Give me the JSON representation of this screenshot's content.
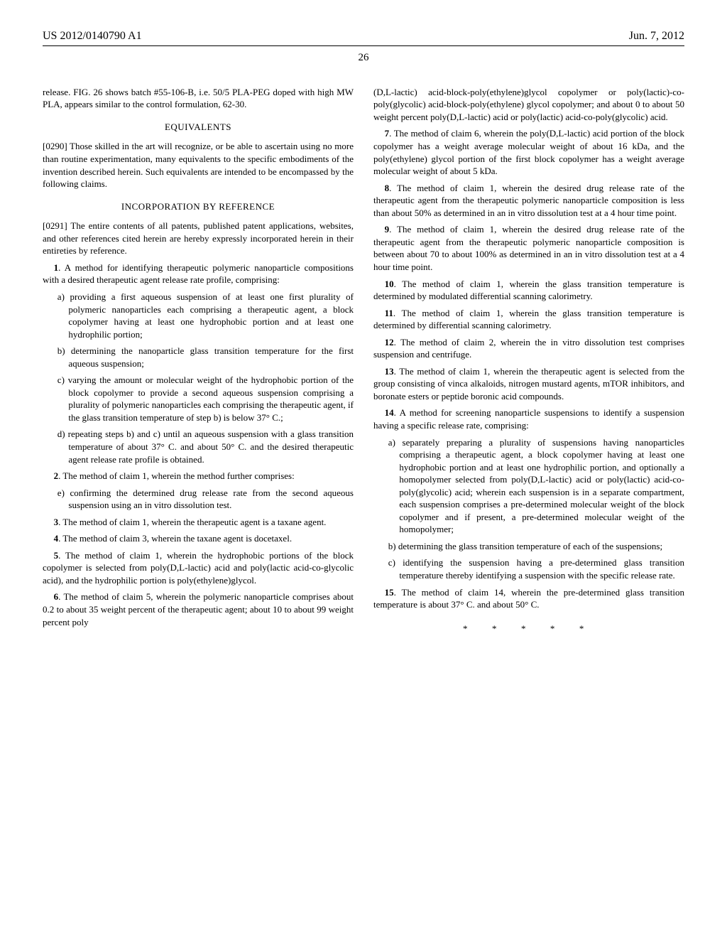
{
  "header": {
    "pub_number": "US 2012/0140790 A1",
    "pub_date": "Jun. 7, 2012"
  },
  "page_number": "26",
  "intro_para": "release. FIG. 26 shows batch #55-106-B, i.e. 50/5 PLA-PEG doped with high MW PLA, appears similar to the control formulation, 62-30.",
  "equivalents_title": "EQUIVALENTS",
  "equivalents_para": "[0290]   Those skilled in the art will recognize, or be able to ascertain using no more than routine experimentation, many equivalents to the specific embodiments of the invention described herein. Such equivalents are intended to be encompassed by the following claims.",
  "incorp_title": "INCORPORATION BY REFERENCE",
  "incorp_para": "[0291]   The entire contents of all patents, published patent applications, websites, and other references cited herein are hereby expressly incorporated herein in their entireties by reference.",
  "claims": {
    "c1_intro": "1. A method for identifying therapeutic polymeric nanoparticle compositions with a desired therapeutic agent release rate profile, comprising:",
    "c1a": "a) providing a first aqueous suspension of at least one first plurality of polymeric nanoparticles each comprising a therapeutic agent, a block copolymer having at least one hydrophobic portion and at least one hydrophilic portion;",
    "c1b": "b) determining the nanoparticle glass transition temperature for the first aqueous suspension;",
    "c1c": "c) varying the amount or molecular weight of the hydrophobic portion of the block copolymer to provide a second aqueous suspension comprising a plurality of polymeric nanoparticles each comprising the therapeutic agent, if the glass transition temperature of step b) is below 37° C.;",
    "c1d": "d) repeating steps b) and c) until an aqueous suspension with a glass transition temperature of about 37° C. and about 50° C. and the desired therapeutic agent release rate profile is obtained.",
    "c2_intro": "2. The method of claim 1, wherein the method further comprises:",
    "c2e": "e) confirming the determined drug release rate from the second aqueous suspension using an in vitro dissolution test.",
    "c3": "3. The method of claim 1, wherein the therapeutic agent is a taxane agent.",
    "c4": "4. The method of claim 3, wherein the taxane agent is docetaxel.",
    "c5": "5. The method of claim 1, wherein the hydrophobic portions of the block copolymer is selected from poly(D,L-lactic) acid and poly(lactic acid-co-glycolic acid), and the hydrophilic portion is poly(ethylene)glycol.",
    "c6a": "6. The method of claim 5, wherein the polymeric nanoparticle comprises about 0.2 to about 35 weight percent of the therapeutic agent; about 10 to about 99 weight percent poly",
    "c6b": "(D,L-lactic) acid-block-poly(ethylene)glycol copolymer or poly(lactic)-co-poly(glycolic) acid-block-poly(ethylene) glycol copolymer; and about 0 to about 50 weight percent poly(D,L-lactic) acid or poly(lactic) acid-co-poly(glycolic) acid.",
    "c7": "7. The method of claim 6, wherein the poly(D,L-lactic) acid portion of the block copolymer has a weight average molecular weight of about 16 kDa, and the poly(ethylene) glycol portion of the first block copolymer has a weight average molecular weight of about 5 kDa.",
    "c8": "8. The method of claim 1, wherein the desired drug release rate of the therapeutic agent from the therapeutic polymeric nanoparticle composition is less than about 50% as determined in an in vitro dissolution test at a 4 hour time point.",
    "c9": "9. The method of claim 1, wherein the desired drug release rate of the therapeutic agent from the therapeutic polymeric nanoparticle composition is between about 70 to about 100% as determined in an in vitro dissolution test at a 4 hour time point.",
    "c10": "10. The method of claim 1, wherein the glass transition temperature is determined by modulated differential scanning calorimetry.",
    "c11": "11. The method of claim 1, wherein the glass transition temperature is determined by differential scanning calorimetry.",
    "c12": "12. The method of claim 2, wherein the in vitro dissolution test comprises suspension and centrifuge.",
    "c13": "13. The method of claim 1, wherein the therapeutic agent is selected from the group consisting of vinca alkaloids, nitrogen mustard agents, mTOR inhibitors, and boronate esters or peptide boronic acid compounds.",
    "c14_intro": "14. A method for screening nanoparticle suspensions to identify a suspension having a specific release rate, comprising:",
    "c14a": "a) separately preparing a plurality of suspensions having nanoparticles comprising a therapeutic agent, a block copolymer having at least one hydrophobic portion and at least one hydrophilic portion, and optionally a homopolymer selected from poly(D,L-lactic) acid or poly(lactic) acid-co-poly(glycolic) acid; wherein each suspension is in a separate compartment, each suspension comprises a pre-determined molecular weight of the block copolymer and if present, a pre-determined molecular weight of the homopolymer;",
    "c14b": "b) determining the glass transition temperature of each of the suspensions;",
    "c14c": "c) identifying the suspension having a pre-determined glass transition temperature thereby identifying a suspension with the specific release rate.",
    "c15": "15. The method of claim 14, wherein the pre-determined glass transition temperature is about 37° C. and about 50° C."
  },
  "stars": "* * * * *"
}
